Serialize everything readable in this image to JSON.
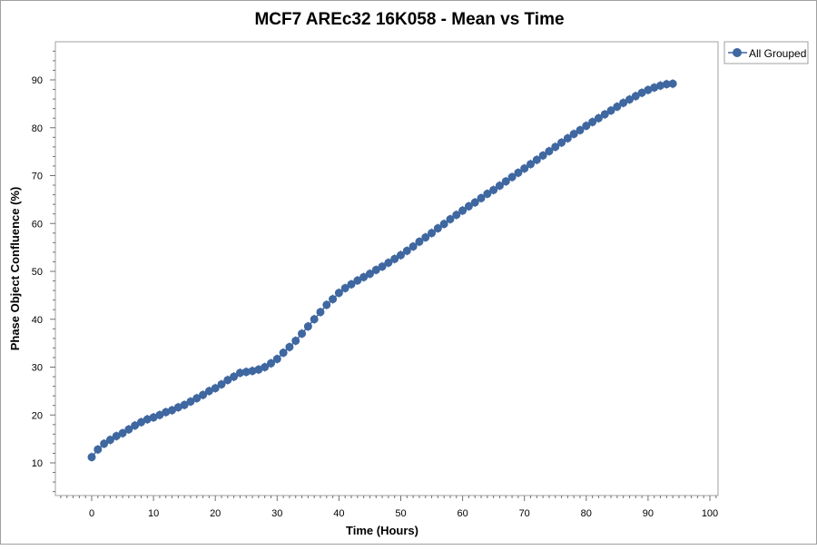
{
  "chart_data": {
    "type": "scatter",
    "title": "MCF7 AREc32 16K058 - Mean vs Time",
    "xlabel": "Time (Hours)",
    "ylabel": "Phase Object Confluence (%)",
    "xlim": [
      -6,
      101
    ],
    "ylim": [
      2,
      97
    ],
    "xticks": [
      0,
      10,
      20,
      30,
      40,
      50,
      60,
      70,
      80,
      90,
      100
    ],
    "yticks": [
      10,
      20,
      30,
      40,
      50,
      60,
      70,
      80,
      90
    ],
    "grid": false,
    "legend": {
      "position": "top-right-outside",
      "entries": [
        "All Grouped"
      ]
    },
    "series": [
      {
        "name": "All Grouped",
        "color": "#3f67a0",
        "x": [
          0,
          1,
          2,
          3,
          4,
          5,
          6,
          7,
          8,
          9,
          10,
          11,
          12,
          13,
          14,
          15,
          16,
          17,
          18,
          19,
          20,
          21,
          22,
          23,
          24,
          25,
          26,
          27,
          28,
          29,
          30,
          31,
          32,
          33,
          34,
          35,
          36,
          37,
          38,
          39,
          40,
          41,
          42,
          43,
          44,
          45,
          46,
          47,
          48,
          49,
          50,
          51,
          52,
          53,
          54,
          55,
          56,
          57,
          58,
          59,
          60,
          61,
          62,
          63,
          64,
          65,
          66,
          67,
          68,
          69,
          70,
          71,
          72,
          73,
          74,
          75,
          76,
          77,
          78,
          79,
          80,
          81,
          82,
          83,
          84,
          85,
          86,
          87,
          88,
          89,
          90,
          91,
          92,
          93,
          94
        ],
        "y": [
          11.2,
          12.8,
          14,
          14.8,
          15.6,
          16.2,
          17,
          17.8,
          18.5,
          19.1,
          19.5,
          20,
          20.6,
          21,
          21.6,
          22.1,
          22.8,
          23.5,
          24.2,
          25,
          25.6,
          26.4,
          27.3,
          28,
          28.8,
          29,
          29.2,
          29.5,
          30,
          30.8,
          31.7,
          33,
          34.2,
          35.5,
          37,
          38.5,
          40,
          41.5,
          43,
          44.2,
          45.5,
          46.5,
          47.3,
          48.1,
          48.8,
          49.5,
          50.3,
          51,
          51.8,
          52.6,
          53.4,
          54.3,
          55.2,
          56.2,
          57.1,
          58,
          59,
          59.9,
          60.9,
          61.8,
          62.7,
          63.6,
          64.4,
          65.3,
          66.2,
          67,
          67.9,
          68.8,
          69.7,
          70.6,
          71.5,
          72.4,
          73.3,
          74.2,
          75.1,
          76,
          76.9,
          77.8,
          78.7,
          79.5,
          80.4,
          81.2,
          82,
          82.8,
          83.6,
          84.4,
          85.2,
          85.9,
          86.6,
          87.3,
          87.9,
          88.4,
          88.8,
          89.1,
          89.2
        ]
      }
    ]
  }
}
